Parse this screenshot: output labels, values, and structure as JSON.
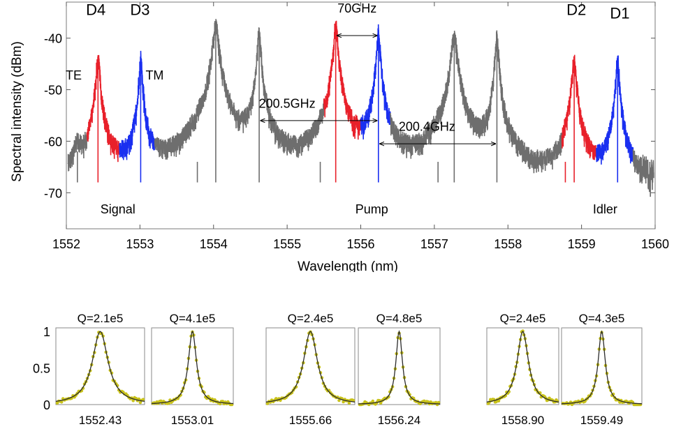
{
  "colors": {
    "te": "#e8202a",
    "tm": "#1a2ff0",
    "background_spectrum": "#6e6e6e",
    "fit_line": "#2b2b2b",
    "data_points": "#c8c21a"
  },
  "chart_data": [
    {
      "type": "line",
      "title": "",
      "xlabel": "Wavelength (nm)",
      "ylabel": "Spectral intensity (dBm)",
      "xlim": [
        1552,
        1560
      ],
      "ylim": [
        -77,
        -33
      ],
      "xticks": [
        1552,
        1553,
        1554,
        1555,
        1556,
        1557,
        1558,
        1559,
        1560
      ],
      "xtick_labels": [
        "1552",
        "1553",
        "1554",
        "1555",
        "1556",
        "1557",
        "1558",
        "1559",
        "1560"
      ],
      "yticks": [
        -70,
        -60,
        -50,
        -40
      ],
      "ytick_labels": [
        "-70",
        "-60",
        "-50",
        "-40"
      ],
      "grid": false,
      "noise_floor": -70,
      "series": [
        {
          "color_key": "background_spectrum",
          "peaks": [
            {
              "x": 1552.15,
              "y": -62,
              "w": 0.05
            },
            {
              "x": 1553.78,
              "y": -64,
              "w": 0.04
            },
            {
              "x": 1554.03,
              "y": -37,
              "w": 0.035
            },
            {
              "x": 1554.62,
              "y": -38,
              "w": 0.02
            },
            {
              "x": 1555.45,
              "y": -64,
              "w": 0.04
            },
            {
              "x": 1557.05,
              "y": -64,
              "w": 0.04
            },
            {
              "x": 1557.27,
              "y": -39,
              "w": 0.035
            },
            {
              "x": 1557.85,
              "y": -39,
              "w": 0.02
            },
            {
              "x": 1558.78,
              "y": -64,
              "w": 0.04
            }
          ]
        },
        {
          "color_key": "te",
          "ranges": [
            [
              1552.28,
              1552.72
            ],
            [
              1555.5,
              1556.0
            ],
            [
              1558.73,
              1559.2
            ]
          ],
          "peaks": [
            {
              "x": 1552.43,
              "y": -43.5,
              "w": 0.025
            },
            {
              "x": 1555.66,
              "y": -37,
              "w": 0.025
            },
            {
              "x": 1558.9,
              "y": -43.5,
              "w": 0.025
            }
          ]
        },
        {
          "color_key": "tm",
          "ranges": [
            [
              1552.72,
              1553.2
            ],
            [
              1556.0,
              1556.4
            ],
            [
              1559.2,
              1559.7
            ]
          ],
          "peaks": [
            {
              "x": 1553.01,
              "y": -43.5,
              "w": 0.02
            },
            {
              "x": 1556.24,
              "y": -38,
              "w": 0.02
            },
            {
              "x": 1559.49,
              "y": -43.5,
              "w": 0.02
            }
          ]
        }
      ],
      "labels": [
        {
          "text": "D4",
          "x": 1552.4,
          "y": -35.5
        },
        {
          "text": "D3",
          "x": 1553.0,
          "y": -35.5
        },
        {
          "text": "D2",
          "x": 1558.93,
          "y": -35.5
        },
        {
          "text": "D1",
          "x": 1559.52,
          "y": -36.2
        },
        {
          "text": "TE",
          "x": 1552.1,
          "y": -48
        },
        {
          "text": "TM",
          "x": 1553.2,
          "y": -48
        },
        {
          "text": "Signal",
          "x": 1552.7,
          "y": -74
        },
        {
          "text": "Pump",
          "x": 1556.15,
          "y": -74
        },
        {
          "text": "Idler",
          "x": 1559.32,
          "y": -74
        },
        {
          "text": "70GHz",
          "x": 1555.95,
          "y": -35
        },
        {
          "text": "200.5GHz",
          "x": 1555.0,
          "y": -53.5
        },
        {
          "text": "200.4GHz",
          "x": 1556.9,
          "y": -58
        }
      ],
      "spacing_arrows": [
        {
          "x1": 1555.66,
          "x2": 1556.24,
          "y": -39.5
        },
        {
          "x1": 1554.62,
          "x2": 1556.24,
          "y": -56
        },
        {
          "x1": 1556.24,
          "x2": 1557.85,
          "y": -60.5
        }
      ]
    },
    {
      "type": "scatter",
      "yticks": [
        0,
        0.5,
        1
      ],
      "ytick_labels": [
        "0",
        "0.5",
        "1"
      ],
      "ylim": [
        0,
        1.05
      ],
      "panels": [
        {
          "title": "Q=2.1e5",
          "xlabel": "1552.43",
          "width_rel": 0.18
        },
        {
          "title": "Q=4.1e5",
          "xlabel": "1553.01",
          "width_rel": 0.1
        },
        {
          "title": "Q=2.4e5",
          "xlabel": "1555.66",
          "width_rel": 0.16
        },
        {
          "title": "Q=4.8e5",
          "xlabel": "1556.24",
          "width_rel": 0.08
        },
        {
          "title": "Q=2.4e5",
          "xlabel": "1558.90",
          "width_rel": 0.16
        },
        {
          "title": "Q=4.3e5",
          "xlabel": "1559.49",
          "width_rel": 0.09
        }
      ]
    }
  ]
}
